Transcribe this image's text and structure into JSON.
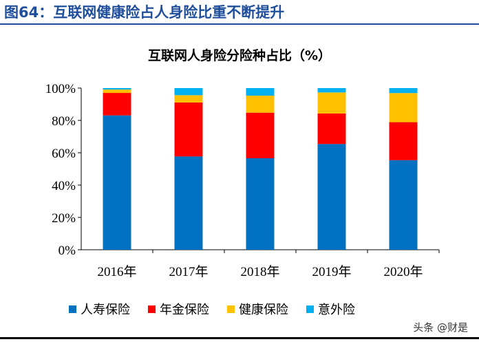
{
  "figure_title": "图64：互联网健康险占人身险比重不断提升",
  "watermark": "头条 @财是",
  "chart_data": {
    "type": "bar",
    "stacked": true,
    "title": "互联网人身险分险种占比（%）",
    "categories": [
      "2016年",
      "2017年",
      "2018年",
      "2019年",
      "2020年"
    ],
    "ylim": [
      0,
      100
    ],
    "yticks": [
      "0%",
      "20%",
      "40%",
      "60%",
      "80%",
      "100%"
    ],
    "grid": false,
    "legend_position": "bottom",
    "series": [
      {
        "name": "人寿保险",
        "color": "#0070C0",
        "values": [
          83.1,
          57.7,
          56.6,
          65.4,
          55.4
        ]
      },
      {
        "name": "年金保险",
        "color": "#FF0000",
        "values": [
          13.9,
          33.4,
          28.2,
          18.9,
          23.5
        ]
      },
      {
        "name": "健康保险",
        "color": "#FFC000",
        "values": [
          2.1,
          4.5,
          10.5,
          13.0,
          18.0
        ]
      },
      {
        "name": "意外险",
        "color": "#00B0F0",
        "values": [
          0.9,
          4.4,
          4.7,
          2.7,
          3.1
        ]
      }
    ]
  }
}
